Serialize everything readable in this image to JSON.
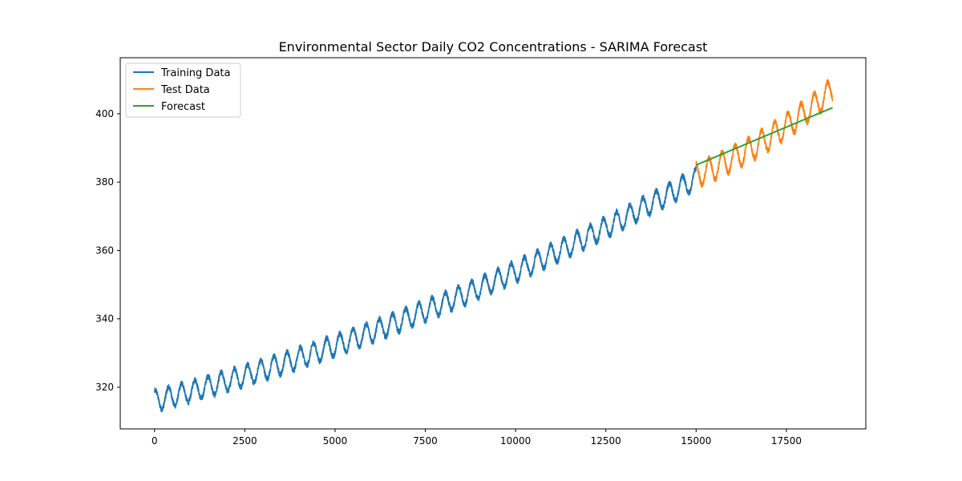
{
  "chart_data": {
    "type": "line",
    "title": "Environmental Sector Daily CO2 Concentrations - SARIMA Forecast",
    "xlabel": "",
    "ylabel": "",
    "xlim": [
      -950,
      19700
    ],
    "ylim": [
      307.8,
      416.4
    ],
    "xticks": [
      0,
      2500,
      5000,
      7500,
      10000,
      12500,
      15000,
      17500
    ],
    "xtick_labels": [
      "0",
      "2500",
      "5000",
      "7500",
      "10000",
      "12500",
      "15000",
      "17500"
    ],
    "yticks": [
      320,
      340,
      360,
      380,
      400
    ],
    "ytick_labels": [
      "320",
      "340",
      "360",
      "380",
      "400"
    ],
    "grid": false,
    "legend_position": "top-left",
    "series": [
      {
        "name": "Training Data",
        "color": "#1f77b4",
        "x_range": [
          0,
          15000
        ],
        "start_value": 316,
        "end_value": 381,
        "trend": "upward, quadratic",
        "seasonal_amplitude": 3,
        "seasonal_period_days": 365
      },
      {
        "name": "Test Data",
        "color": "#ff7f0e",
        "x_range": [
          15000,
          18780
        ],
        "start_value": 382,
        "end_value": 407,
        "trend": "upward",
        "seasonal_amplitude": 3.5,
        "seasonal_period_days": 365
      },
      {
        "name": "Forecast",
        "color": "#2ca02c",
        "x": [
          15000,
          18780
        ],
        "y": [
          385,
          401.8
        ]
      }
    ]
  }
}
